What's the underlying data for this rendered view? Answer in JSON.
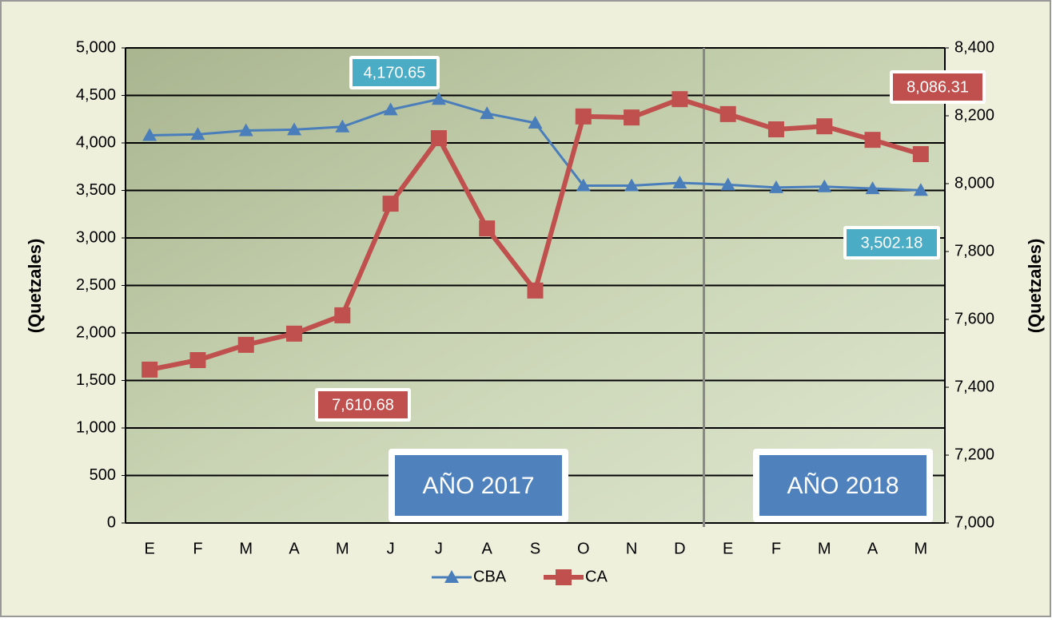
{
  "chart_data": {
    "type": "line",
    "categories": [
      "E",
      "F",
      "M",
      "A",
      "M",
      "J",
      "J",
      "A",
      "S",
      "O",
      "N",
      "D",
      "E",
      "F",
      "M",
      "A",
      "M"
    ],
    "series": [
      {
        "name": "CBA",
        "color": "#4a7ebb",
        "marker": "triangle",
        "axis": "y",
        "values": [
          4080,
          4090,
          4130,
          4140,
          4170,
          4350,
          4460,
          4310,
          4210,
          3550,
          3550,
          3580,
          3560,
          3530,
          3540,
          3520,
          3502
        ]
      },
      {
        "name": "CA",
        "color": "#c0504d",
        "marker": "square",
        "axis": "y2",
        "values": [
          7452,
          7480,
          7525,
          7558,
          7612,
          7941,
          8134,
          7868,
          7685,
          8198,
          8195,
          8249,
          8205,
          8160,
          8169,
          8129,
          8087
        ]
      }
    ],
    "ylabel": "(Quetzales)",
    "y2label": "(Quetzales)",
    "ylim": [
      0,
      5000
    ],
    "yticks": [
      0,
      500,
      {
        "value": 1000,
        "label": "1,000"
      },
      {
        "value": 1500,
        "label": "1,500"
      },
      {
        "value": 2000,
        "label": "2,000"
      },
      {
        "value": 2500,
        "label": "2,500"
      },
      {
        "value": 3000,
        "label": "3,000"
      },
      {
        "value": 3500,
        "label": "3,500"
      },
      {
        "value": 4000,
        "label": "4,000"
      },
      {
        "value": 4500,
        "label": "4,500"
      },
      {
        "value": 5000,
        "label": "5,000"
      }
    ],
    "y2lim": [
      7000,
      8400
    ],
    "y2ticks": [
      {
        "value": 7000,
        "label": "7,000"
      },
      {
        "value": 7200,
        "label": "7,200"
      },
      {
        "value": 7400,
        "label": "7,400"
      },
      {
        "value": 7600,
        "label": "7,600"
      },
      {
        "value": 7800,
        "label": "7,800"
      },
      {
        "value": 8000,
        "label": "8,000"
      },
      {
        "value": 8200,
        "label": "8,200"
      },
      {
        "value": 8400,
        "label": "8,400"
      }
    ],
    "grid": true,
    "annotations": [
      "4,170.65",
      "8,086.31",
      "7,610.68",
      "3,502.18"
    ],
    "periods": [
      "AÑO 2017",
      "AÑO 2018"
    ]
  }
}
